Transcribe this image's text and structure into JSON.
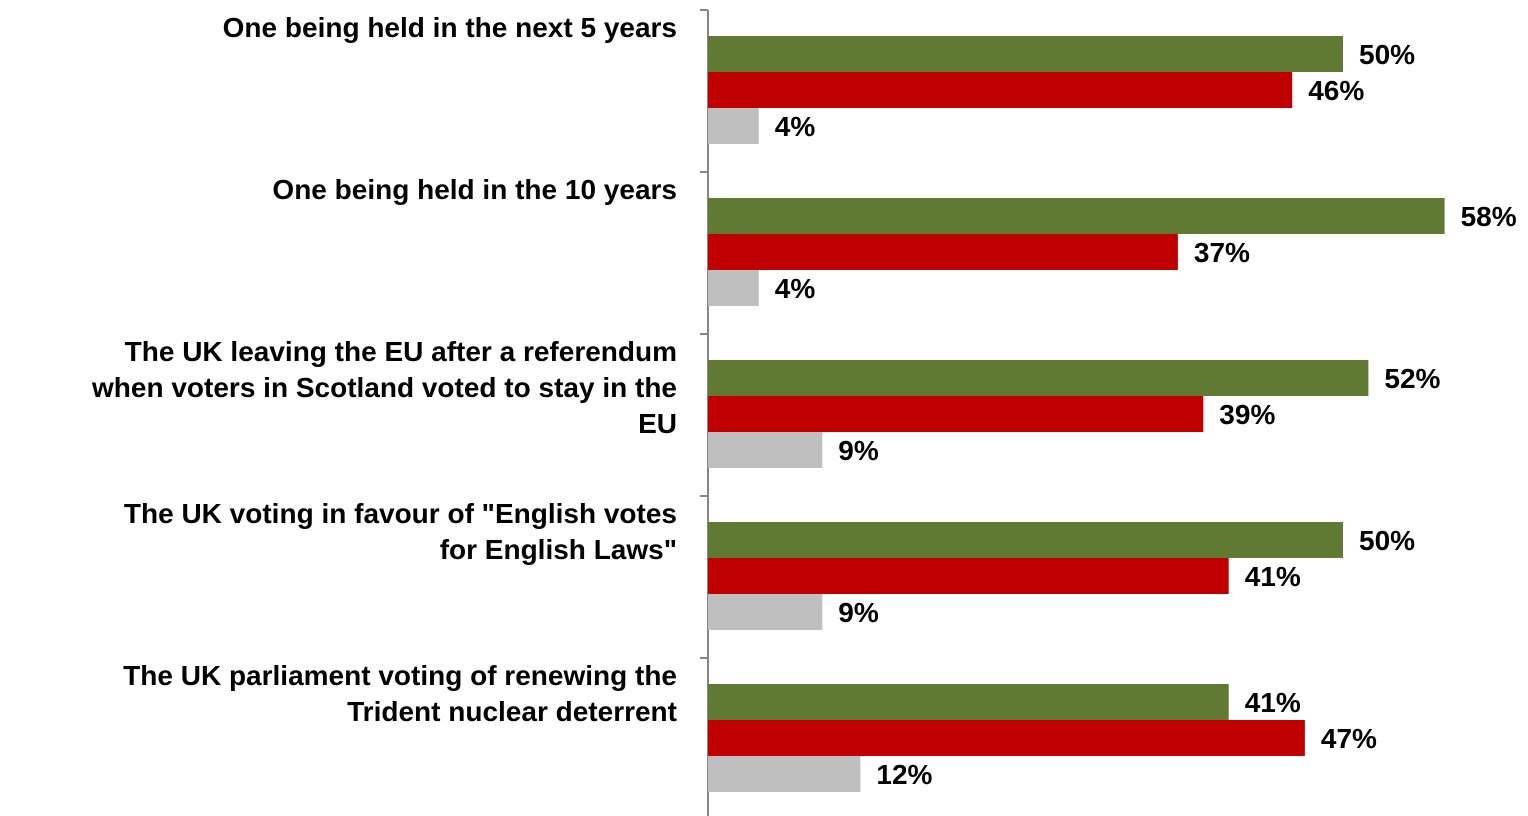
{
  "chart_data": {
    "type": "bar",
    "orientation": "horizontal",
    "categories": [
      "One being held in the next 5 years",
      "One being held in the 10 years",
      "The UK leaving the EU after a referendum when voters in Scotland voted to stay in the EU",
      "The UK voting in favour of \"English votes for English Laws\"",
      "The UK parliament voting of renewing the Trident nuclear deterrent"
    ],
    "category_lines": [
      [
        "One being held in the next 5 years"
      ],
      [
        "One being held in the 10 years"
      ],
      [
        "The UK leaving the EU after a referendum",
        "when voters in Scotland voted to stay in the",
        "EU"
      ],
      [
        "The UK voting in favour of \"English votes",
        "for English Laws\""
      ],
      [
        "The UK parliament voting of renewing the",
        "Trident nuclear deterrent"
      ]
    ],
    "series": [
      {
        "values": [
          50,
          58,
          52,
          50,
          41
        ],
        "labels": [
          "50%",
          "58%",
          "52%",
          "50%",
          "41%"
        ],
        "color": "#617A33"
      },
      {
        "values": [
          46,
          37,
          39,
          41,
          47
        ],
        "labels": [
          "46%",
          "37%",
          "39%",
          "41%",
          "47%"
        ],
        "color": "#C00000"
      },
      {
        "values": [
          4,
          4,
          9,
          9,
          12
        ],
        "labels": [
          "4%",
          "4%",
          "9%",
          "9%",
          "12%"
        ],
        "color": "#BFBFBF"
      }
    ],
    "unit": "%",
    "xlim": [
      0,
      64
    ],
    "grid": false,
    "legend": "none",
    "title": "",
    "xlabel": "",
    "ylabel": ""
  }
}
